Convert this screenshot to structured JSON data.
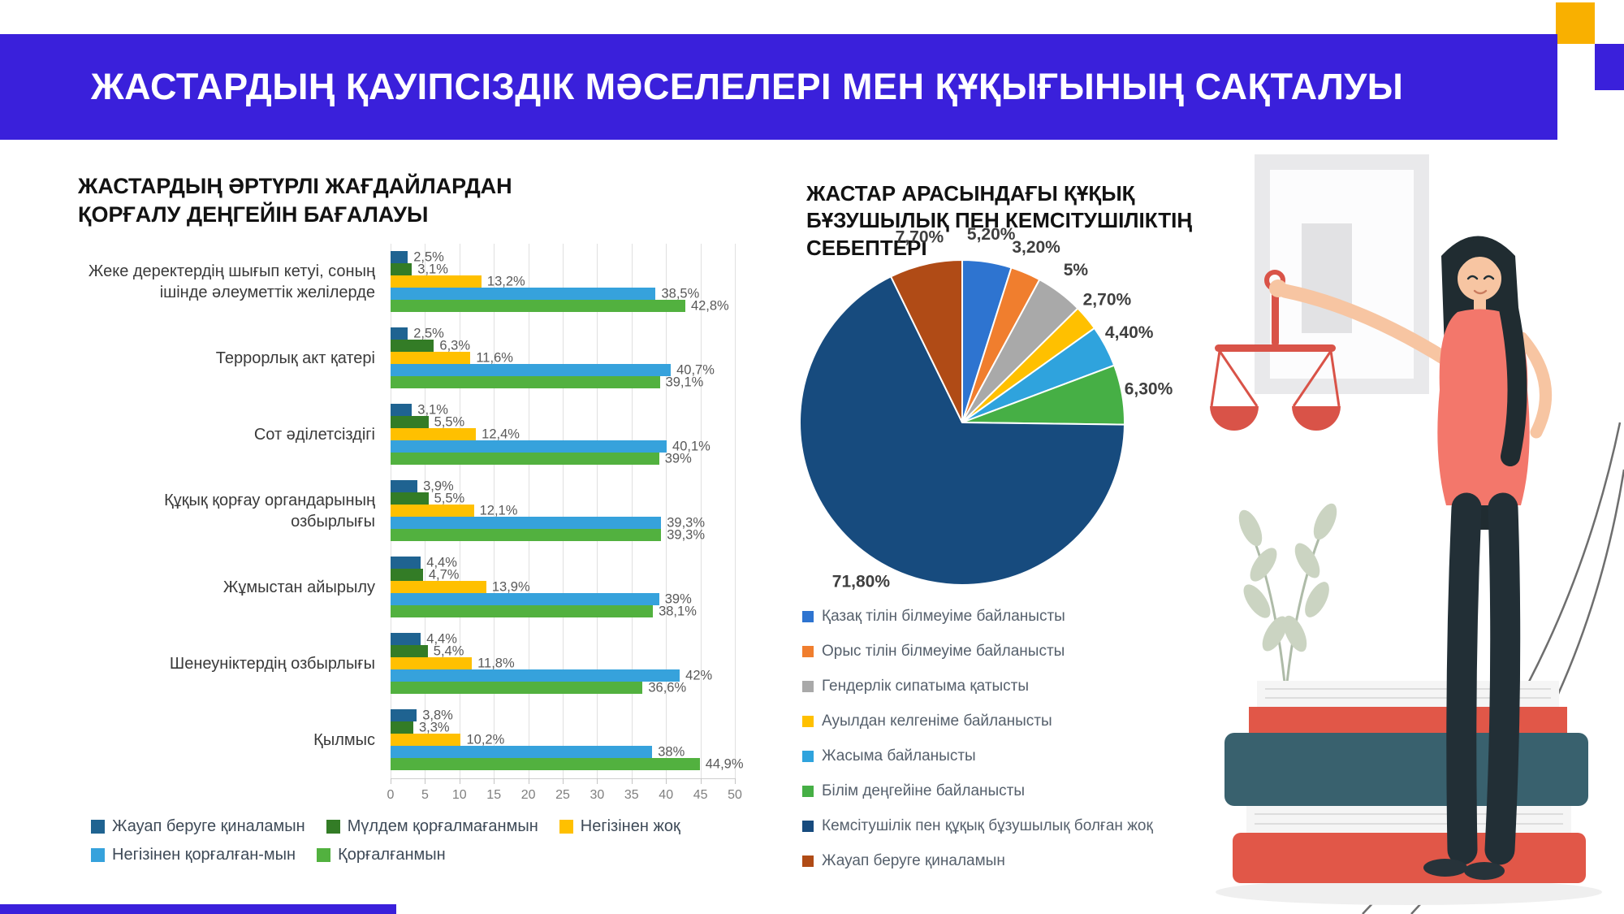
{
  "header": {
    "title": "ЖАСТАРДЫҢ ҚАУІПСІЗДІК МӘСЕЛЕЛЕРІ МЕН ҚҰҚЫҒЫНЫҢ САҚТАЛУЫ"
  },
  "colors": {
    "banner": "#3A20DB",
    "accent_yellow": "#F9B000",
    "grid": "#E0E0E0",
    "value_text": "#595959",
    "axis_text": "#7F7F7F",
    "legend_text": "#3E4A57"
  },
  "chart_data": [
    {
      "type": "bar",
      "orientation": "horizontal",
      "title": "ЖАСТАРДЫҢ ӘРТҮРЛІ ЖАҒДАЙЛАРДАН ҚОРҒАЛУ ДЕҢГЕЙІН БАҒАЛАУЫ",
      "categories": [
        "Жеке деректердің шығып кетуі, соның ішінде әлеуметтік желілерде",
        "Террорлық акт қатері",
        "Сот әділетсіздігі",
        "Құқық қорғау органдарының озбырлығы",
        "Жұмыстан айырылу",
        "Шенеуніктердің озбырлығы",
        "Қылмыс"
      ],
      "series": [
        {
          "name": "Жауап беруге қиналамын",
          "color": "#1F6391",
          "values": [
            2.5,
            2.5,
            3.1,
            3.9,
            4.4,
            4.4,
            3.8
          ],
          "labels": [
            "2,5%",
            "2,5%",
            "3,1%",
            "3,9%",
            "4,4%",
            "4,4%",
            "3,8%"
          ]
        },
        {
          "name": "Мүлдем қорғалмағанмын",
          "color": "#337C26",
          "values": [
            3.1,
            6.3,
            5.5,
            5.5,
            4.7,
            5.4,
            3.3
          ],
          "labels": [
            "3,1%",
            "6,3%",
            "5,5%",
            "5,5%",
            "4,7%",
            "5,4%",
            "3,3%"
          ]
        },
        {
          "name": "Негізінен жоқ",
          "color": "#FFC000",
          "values": [
            13.2,
            11.6,
            12.4,
            12.1,
            13.9,
            11.8,
            10.2
          ],
          "labels": [
            "13,2%",
            "11,6%",
            "12,4%",
            "12,1%",
            "13,9%",
            "11,8%",
            "10,2%"
          ]
        },
        {
          "name": "Негізінен қорғалған-мын",
          "color": "#36A2DC",
          "values": [
            38.5,
            40.7,
            40.1,
            39.3,
            39.0,
            42.0,
            38.0
          ],
          "labels": [
            "38,5%",
            "40,7%",
            "40,1%",
            "39,3%",
            "39%",
            "42%",
            "38%"
          ]
        },
        {
          "name": "Қорғалғанмын",
          "color": "#52B13F",
          "values": [
            42.8,
            39.1,
            39.0,
            39.3,
            38.1,
            36.6,
            44.9
          ],
          "labels": [
            "42,8%",
            "39,1%",
            "39%",
            "39,3%",
            "38,1%",
            "36,6%",
            "44,9%"
          ]
        }
      ],
      "xlim": [
        0,
        50
      ],
      "x_ticks": [
        "0",
        "5",
        "10",
        "15",
        "20",
        "25",
        "30",
        "35",
        "40",
        "45",
        "50"
      ],
      "grid": true,
      "legend_rows": [
        [
          0,
          1,
          2
        ],
        [
          3,
          4
        ]
      ],
      "legend_position": "bottom"
    },
    {
      "type": "pie",
      "title": "ЖАСТАР АРАСЫНДАҒЫ ҚҰҚЫҚ БҰЗУШЫЛЫҚ ПЕН КЕМСІТУШІЛІКТІҢ СЕБЕПТЕРІ",
      "legend_position": "bottom-left",
      "slices": [
        {
          "label": "Қазақ тілін білмеуіме байланысты",
          "value": 5.2,
          "display": "5,20%",
          "color": "#2E74D0"
        },
        {
          "label": "Орыс тілін білмеуіме байланысты",
          "value": 3.2,
          "display": "3,20%",
          "color": "#F07E2E"
        },
        {
          "label": "Гендерлік сипатыма қатысты",
          "value": 5.0,
          "display": "5%",
          "color": "#A9A9A9"
        },
        {
          "label": "Ауылдан келгеніме байланысты",
          "value": 2.7,
          "display": "2,70%",
          "color": "#FFC000"
        },
        {
          "label": "Жасыма байланысты",
          "value": 4.4,
          "display": "4,40%",
          "color": "#2FA3DD"
        },
        {
          "label": "Білім деңгейіне байланысты",
          "value": 6.3,
          "display": "6,30%",
          "color": "#46AF45"
        },
        {
          "label": "Кемсітушілік пен құқық бұзушылық болған жоқ",
          "value": 71.8,
          "display": "71,80%",
          "color": "#174B7E"
        },
        {
          "label": "Жауап беруге қиналамын",
          "value": 7.7,
          "display": "7,70%",
          "color": "#B04B16"
        }
      ]
    }
  ]
}
